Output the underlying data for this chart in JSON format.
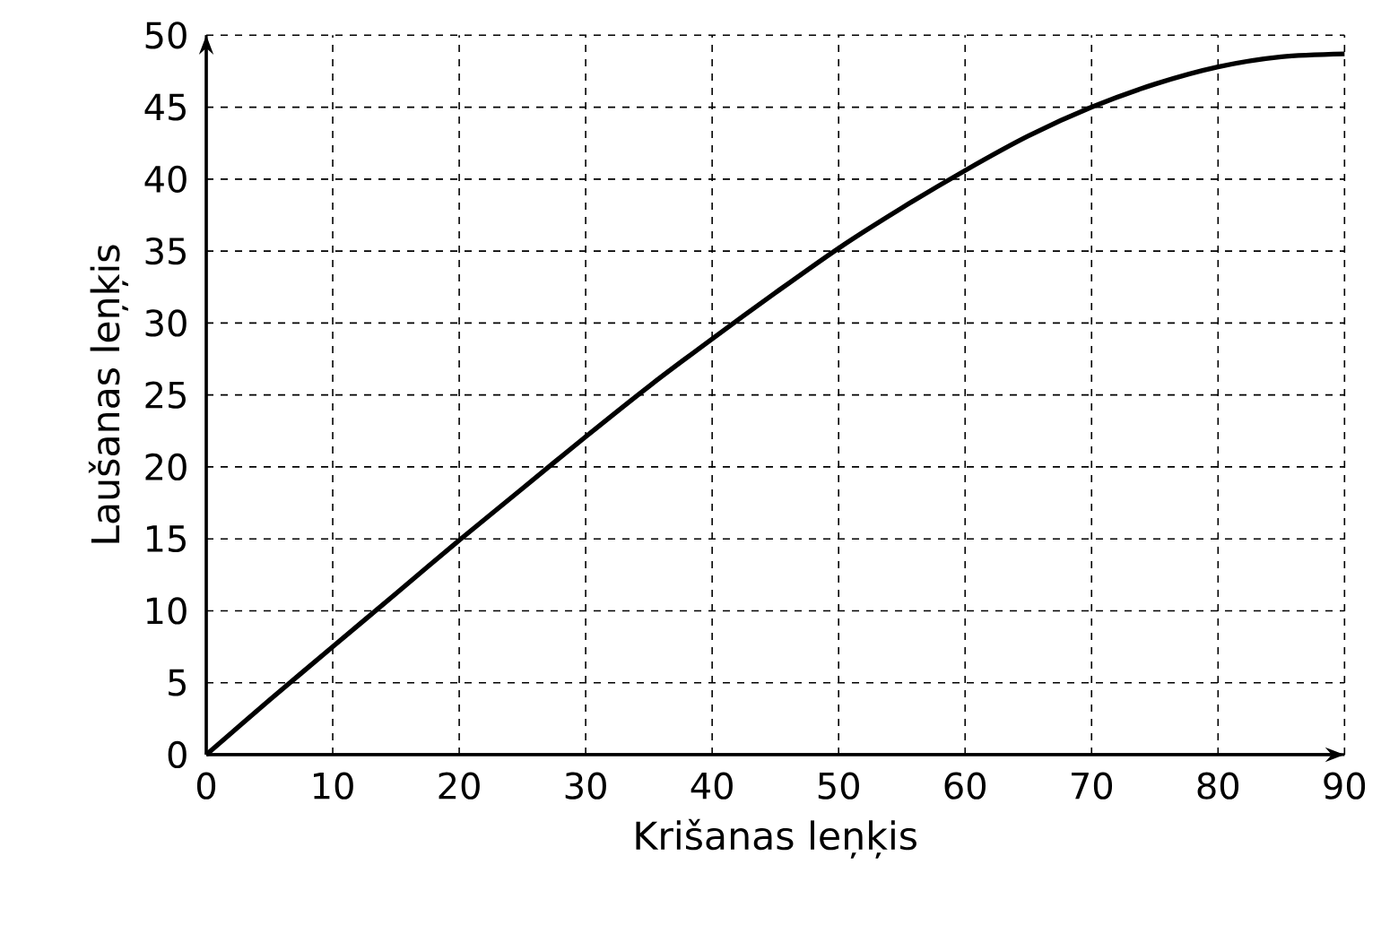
{
  "chart_data": {
    "type": "line",
    "xlabel": "Krišanas leņķis",
    "ylabel": "Laušanas leņķis",
    "x": [
      0,
      5,
      10,
      15,
      20,
      25,
      30,
      35,
      40,
      45,
      50,
      55,
      60,
      65,
      70,
      75,
      80,
      85,
      90
    ],
    "values": [
      0,
      3.8,
      7.5,
      11.2,
      14.9,
      18.5,
      22.1,
      25.6,
      28.9,
      32.1,
      35.2,
      38.0,
      40.6,
      43.0,
      45.0,
      46.6,
      47.8,
      48.5,
      48.7
    ],
    "color": "#000000",
    "xlim": [
      0,
      90
    ],
    "ylim": [
      0,
      50
    ],
    "xticks": [
      0,
      10,
      20,
      30,
      40,
      50,
      60,
      70,
      80,
      90
    ],
    "yticks": [
      0,
      5,
      10,
      15,
      20,
      25,
      30,
      35,
      40,
      45,
      50
    ],
    "grid": true,
    "line_style": "solid",
    "marker": "none"
  }
}
